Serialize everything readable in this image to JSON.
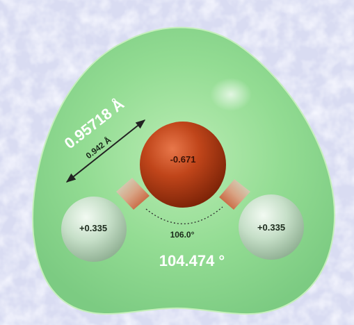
{
  "background": {
    "color": "#d9dcf2",
    "texture": "frosted-snow"
  },
  "potential_surface": {
    "color": "#8fd98f",
    "edge_color": "#c4efb9"
  },
  "atoms": {
    "oxygen": {
      "charge_label": "-0.671",
      "color": "#c0451a"
    },
    "hydrogen_left": {
      "charge_label": "+0.335",
      "color": "#c9e2cc"
    },
    "hydrogen_right": {
      "charge_label": "+0.335",
      "color": "#c9e2cc"
    }
  },
  "measurements": {
    "bond_length_small": "0.942 Å",
    "bond_length_large": "0.95718 Å",
    "angle_small": "106.0°",
    "angle_large": "104.474 °"
  }
}
